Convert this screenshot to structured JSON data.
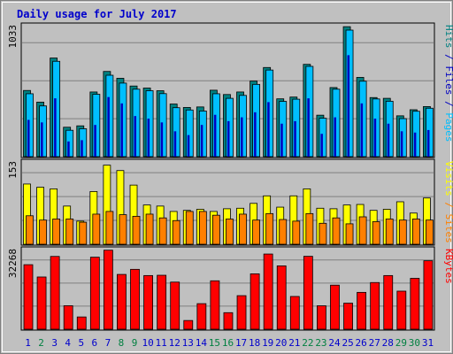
{
  "title": "Daily usage for July 2017",
  "colors": {
    "title": "#0000cc",
    "panel_bg": "#c0c0c0",
    "frame_outer": "#808080",
    "grid": "#808080",
    "hits": "#008080",
    "files": "#00bfff",
    "pages": "#0000c0",
    "visits": "#ffff00",
    "sites": "#ff8000",
    "kbytes": "#ff0000",
    "weekday_label": "#0000cc",
    "weekend_label": "#008040"
  },
  "chart_data": [
    {
      "type": "bar",
      "panel": "hits-files-pages",
      "max_label": "1033",
      "ylim": [
        0,
        1033
      ],
      "right_labels": [
        {
          "text": "Hits",
          "color_key": "hits"
        },
        {
          "text": " / ",
          "color_key": "pages"
        },
        {
          "text": "Files",
          "color_key": "pages"
        },
        {
          "text": " / ",
          "color_key": "pages"
        },
        {
          "text": "Pages",
          "color_key": "files"
        }
      ],
      "series": [
        {
          "key": "hits",
          "values": [
            522,
            430,
            778,
            232,
            243,
            510,
            672,
            618,
            557,
            541,
            520,
            415,
            388,
            392,
            524,
            490,
            510,
            596,
            703,
            456,
            470,
            728,
            327,
            545,
            1025,
            625,
            466,
            460,
            322,
            370,
            395
          ]
        },
        {
          "key": "files",
          "values": [
            496,
            400,
            752,
            208,
            220,
            492,
            642,
            580,
            532,
            520,
            497,
            386,
            368,
            360,
            496,
            460,
            483,
            570,
            683,
            436,
            453,
            712,
            303,
            532,
            998,
            595,
            455,
            437,
            300,
            358,
            382
          ]
        },
        {
          "key": "pages",
          "values": [
            290,
            270,
            460,
            120,
            130,
            250,
            470,
            420,
            320,
            300,
            270,
            200,
            170,
            250,
            330,
            280,
            310,
            350,
            430,
            260,
            280,
            460,
            180,
            310,
            800,
            420,
            300,
            260,
            200,
            190,
            210
          ]
        }
      ],
      "categories": [
        "1",
        "2",
        "3",
        "4",
        "5",
        "6",
        "7",
        "8",
        "9",
        "10",
        "11",
        "12",
        "13",
        "14",
        "15",
        "16",
        "17",
        "18",
        "19",
        "20",
        "21",
        "22",
        "23",
        "24",
        "25",
        "26",
        "27",
        "28",
        "29",
        "30",
        "31"
      ]
    },
    {
      "type": "bar",
      "panel": "visits-sites",
      "max_label": "153",
      "ylim": [
        0,
        153
      ],
      "right_labels": [
        {
          "text": "Visits",
          "color_key": "visits"
        },
        {
          "text": " / ",
          "color_key": "sites"
        },
        {
          "text": "Sites",
          "color_key": "sites"
        }
      ],
      "series": [
        {
          "key": "visits",
          "values": [
            112,
            106,
            103,
            71,
            43,
            98,
            147,
            137,
            110,
            73,
            71,
            61,
            63,
            65,
            61,
            66,
            67,
            76,
            90,
            69,
            90,
            103,
            67,
            66,
            73,
            74,
            63,
            65,
            79,
            58,
            86
          ]
        },
        {
          "key": "sites",
          "values": [
            53,
            45,
            47,
            47,
            41,
            56,
            61,
            55,
            52,
            56,
            49,
            44,
            61,
            61,
            54,
            47,
            56,
            45,
            57,
            46,
            43,
            57,
            39,
            49,
            38,
            51,
            42,
            47,
            45,
            47,
            45
          ]
        }
      ]
    },
    {
      "type": "bar",
      "panel": "kbytes",
      "max_label": "32268",
      "ylim": [
        0,
        32268
      ],
      "right_labels": [
        {
          "text": "KBytes",
          "color_key": "kbytes"
        }
      ],
      "series": [
        {
          "key": "kbytes",
          "values": [
            26144,
            21160,
            29490,
            9520,
            4970,
            29180,
            32020,
            22200,
            24260,
            21740,
            21860,
            19090,
            3530,
            10360,
            19620,
            6710,
            13600,
            22440,
            30460,
            25670,
            13270,
            29540,
            9500,
            17850,
            10560,
            14930,
            18910,
            21740,
            15420,
            20620,
            27740
          ]
        }
      ]
    }
  ],
  "day_colors": [
    "weekday",
    "weekend",
    "weekday",
    "weekday",
    "weekday",
    "weekday",
    "weekday",
    "weekend",
    "weekend",
    "weekday",
    "weekday",
    "weekday",
    "weekday",
    "weekday",
    "weekend",
    "weekend",
    "weekday",
    "weekday",
    "weekday",
    "weekday",
    "weekday",
    "weekend",
    "weekend",
    "weekday",
    "weekday",
    "weekday",
    "weekday",
    "weekday",
    "weekend",
    "weekend",
    "weekday"
  ]
}
